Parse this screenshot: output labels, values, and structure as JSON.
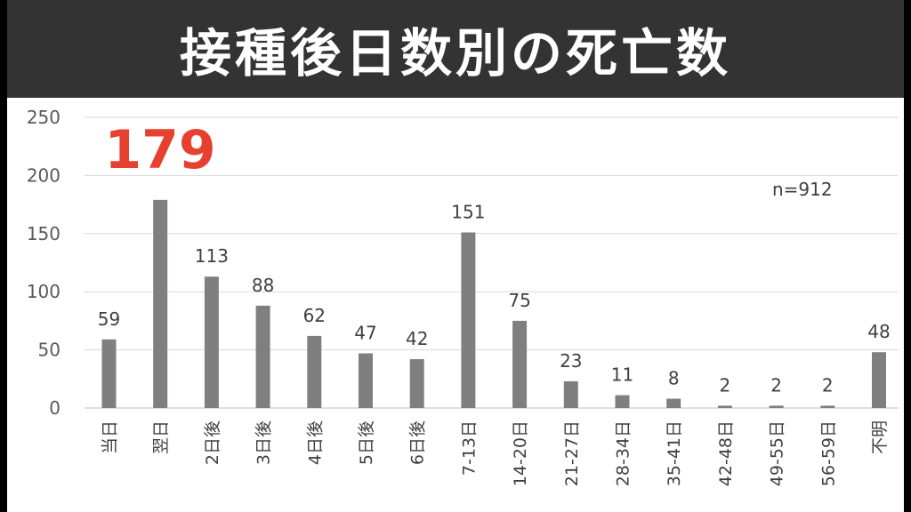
{
  "title": "接種後日数別の死亡数",
  "colors": {
    "title_bg": "#333333",
    "title_fg": "#ffffff",
    "bar": "#7f7f7f",
    "highlight": "#e8402f"
  },
  "annotation": {
    "sample_size": "n=912"
  },
  "highlight_label": "179",
  "chart_data": {
    "type": "bar",
    "title": "接種後日数別の死亡数",
    "categories": [
      "当日",
      "翌日",
      "2日後",
      "3日後",
      "4日後",
      "5日後",
      "6日後",
      "7-13日",
      "14-20日",
      "21-27日",
      "28-34日",
      "35-41日",
      "42-48日",
      "49-55日",
      "56-59日",
      "不明"
    ],
    "values": [
      59,
      179,
      113,
      88,
      62,
      47,
      42,
      151,
      75,
      23,
      11,
      8,
      2,
      2,
      2,
      48
    ],
    "data_labels": [
      "59",
      "",
      "113",
      "88",
      "62",
      "47",
      "42",
      "151",
      "75",
      "23",
      "11",
      "8",
      "2",
      "2",
      "2",
      "48"
    ],
    "ylim": [
      0,
      250
    ],
    "yticks": [
      0,
      50,
      100,
      150,
      200,
      250
    ],
    "grid": true,
    "legend": false
  }
}
